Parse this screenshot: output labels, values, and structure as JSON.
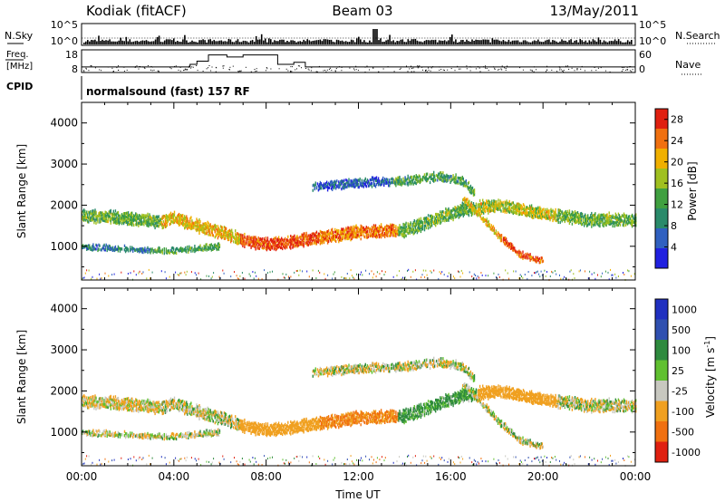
{
  "header": {
    "station": "Kodiak (fitACF)",
    "beam": "Beam 03",
    "date": "13/May/2011"
  },
  "summary": {
    "left_label_top": "N.Sky",
    "left_label_freq_1": "Freq.",
    "left_label_freq_2": "[MHz]",
    "left_label_cpid": "CPID",
    "right_label_top": "N.Search",
    "right_label_nave": "Nave",
    "nsky_ticks": [
      "10^5",
      "10^0"
    ],
    "nsearch_ticks": [
      "10^5",
      "10^0"
    ],
    "freq_ticks": [
      "18",
      "8"
    ],
    "nave_ticks": [
      "60",
      "0"
    ],
    "cpid_text": "normalsound (fast) 157 RF"
  },
  "chart_data": [
    {
      "type": "heatmap",
      "title": "",
      "xlabel": "",
      "ylabel": "Slant Range [km]",
      "xlim": [
        0,
        24
      ],
      "ylim": [
        180,
        4500
      ],
      "x_ticks": [
        "00:00",
        "04:00",
        "08:00",
        "12:00",
        "16:00",
        "20:00",
        "00:00"
      ],
      "y_ticks": [
        1000,
        2000,
        3000,
        4000
      ],
      "colorbar": {
        "label": "Power [dB]",
        "ticks": [
          4,
          8,
          12,
          16,
          20,
          24,
          28
        ],
        "range": [
          0,
          30
        ],
        "colors": [
          "#2020e0",
          "#3060c0",
          "#2a8a6a",
          "#40a040",
          "#a0c020",
          "#f0b000",
          "#f07010",
          "#e02010"
        ]
      },
      "bands": [
        {
          "name": "main",
          "points": [
            [
              0,
              1750
            ],
            [
              1.5,
              1700
            ],
            [
              3.5,
              1600
            ],
            [
              4,
              1700
            ],
            [
              5,
              1500
            ],
            [
              6,
              1350
            ],
            [
              7,
              1150
            ],
            [
              8,
              1050
            ],
            [
              9,
              1100
            ],
            [
              10,
              1200
            ],
            [
              12,
              1350
            ],
            [
              14,
              1400
            ],
            [
              15.5,
              1700
            ],
            [
              16.5,
              1900
            ],
            [
              18,
              2000
            ],
            [
              20,
              1800
            ],
            [
              22,
              1650
            ],
            [
              24,
              1650
            ]
          ],
          "half_width": 110,
          "power": [
            14,
            20,
            26,
            24,
            14,
            18,
            14
          ]
        },
        {
          "name": "lower",
          "points": [
            [
              0,
              1000
            ],
            [
              1.5,
              950
            ],
            [
              3,
              900
            ],
            [
              4,
              900
            ],
            [
              5,
              950
            ],
            [
              6,
              1000
            ]
          ],
          "half_width": 40,
          "power": [
            8,
            12
          ]
        },
        {
          "name": "upper",
          "points": [
            [
              10,
              2450
            ],
            [
              12,
              2550
            ],
            [
              14,
              2600
            ],
            [
              15.5,
              2700
            ],
            [
              16.5,
              2600
            ],
            [
              17,
              2300
            ]
          ],
          "half_width": 70,
          "power": [
            6,
            12
          ]
        },
        {
          "name": "descending",
          "points": [
            [
              16.5,
              2200
            ],
            [
              18,
              1300
            ],
            [
              19,
              800
            ],
            [
              20,
              650
            ]
          ],
          "half_width": 50,
          "power": [
            20,
            26
          ]
        }
      ]
    },
    {
      "type": "heatmap",
      "title": "",
      "xlabel": "Time UT",
      "ylabel": "Slant Range [km]",
      "xlim": [
        0,
        24
      ],
      "ylim": [
        180,
        4500
      ],
      "x_ticks": [
        "00:00",
        "04:00",
        "08:00",
        "12:00",
        "16:00",
        "20:00",
        "00:00"
      ],
      "y_ticks": [
        1000,
        2000,
        3000,
        4000
      ],
      "colorbar": {
        "label": "Velocity [m s^-1]",
        "label_main": "Velocity [m s",
        "label_sup": "-1",
        "label_end": "]",
        "ticks": [
          1000,
          500,
          100,
          25,
          -25,
          -100,
          -500,
          -1000
        ],
        "colors": [
          "#2030c0",
          "#3050b0",
          "#2e8a3e",
          "#60c030",
          "#c8c8c0",
          "#f0a020",
          "#f07010",
          "#e02010"
        ]
      },
      "bands": [
        {
          "name": "main",
          "points": [
            [
              0,
              1750
            ],
            [
              1.5,
              1700
            ],
            [
              3.5,
              1600
            ],
            [
              4,
              1700
            ],
            [
              5,
              1500
            ],
            [
              6,
              1350
            ],
            [
              7,
              1150
            ],
            [
              8,
              1050
            ],
            [
              9,
              1100
            ],
            [
              10,
              1200
            ],
            [
              12,
              1350
            ],
            [
              14,
              1400
            ],
            [
              15.5,
              1700
            ],
            [
              16.5,
              1900
            ],
            [
              18,
              2000
            ],
            [
              20,
              1800
            ],
            [
              22,
              1650
            ],
            [
              24,
              1650
            ]
          ],
          "half_width": 110,
          "velocity": [
            -25,
            0,
            -200,
            -300,
            100,
            -200,
            0
          ]
        },
        {
          "name": "lower",
          "points": [
            [
              0,
              1000
            ],
            [
              1.5,
              950
            ],
            [
              3,
              900
            ],
            [
              4,
              900
            ],
            [
              5,
              950
            ],
            [
              6,
              1000
            ]
          ],
          "half_width": 40,
          "velocity": [
            0
          ]
        },
        {
          "name": "upper",
          "points": [
            [
              10,
              2450
            ],
            [
              12,
              2550
            ],
            [
              14,
              2600
            ],
            [
              15.5,
              2700
            ],
            [
              16.5,
              2600
            ],
            [
              17,
              2300
            ]
          ],
          "half_width": 70,
          "velocity": [
            0
          ]
        },
        {
          "name": "descending",
          "points": [
            [
              16.5,
              2200
            ],
            [
              18,
              1300
            ],
            [
              19,
              800
            ],
            [
              20,
              650
            ]
          ],
          "half_width": 50,
          "velocity": [
            0
          ]
        }
      ]
    },
    {
      "type": "line",
      "ylabel": "Freq. [MHz]",
      "xlim": [
        0,
        24
      ],
      "ylim": [
        8,
        18
      ],
      "x": [
        0,
        4.7,
        5.0,
        5.5,
        6.3,
        7.0,
        7.5,
        8.5,
        9.2,
        9.7,
        24
      ],
      "values": [
        10.2,
        11.5,
        13.0,
        16.0,
        15.0,
        16.0,
        16.0,
        11.5,
        12.5,
        10.2,
        10.2
      ]
    }
  ]
}
